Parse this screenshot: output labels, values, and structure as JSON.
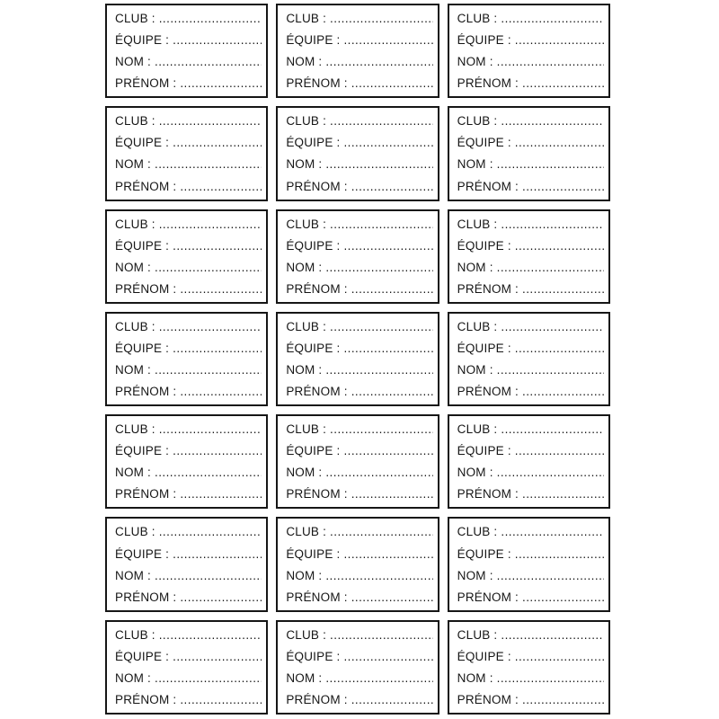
{
  "page": {
    "background": "#ffffff",
    "border_color": "#161616",
    "text_color": "#161616"
  },
  "grid": {
    "columns": 3,
    "rows": 7,
    "card_count": 21
  },
  "card": {
    "fields": [
      {
        "name": "club",
        "label": "CLUB :"
      },
      {
        "name": "equipe",
        "label": "ÉQUIPE :"
      },
      {
        "name": "nom",
        "label": "NOM :"
      },
      {
        "name": "prenom",
        "label": "PRÉNOM :"
      }
    ],
    "dot_leader": "...................................................................................................."
  }
}
